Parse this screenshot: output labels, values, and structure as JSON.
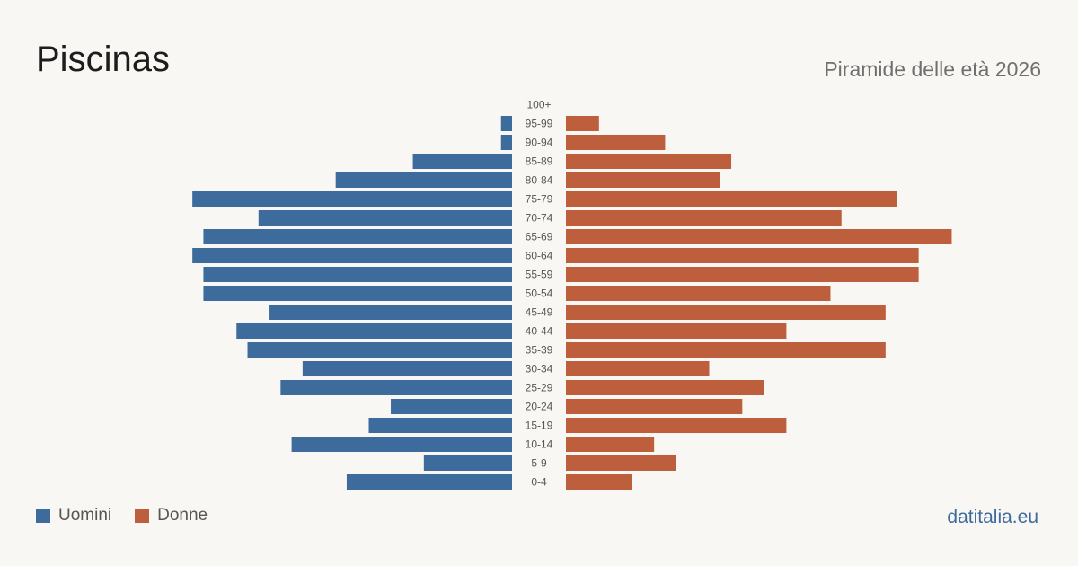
{
  "title": "Piscinas",
  "subtitle": "Piramide delle età 2026",
  "source": "datitalia.eu",
  "colors": {
    "men": "#3d6b9c",
    "women": "#bd5f3d",
    "source": "#3d6b9c"
  },
  "legend": {
    "men_label": "Uomini",
    "women_label": "Donne"
  },
  "chart_data": {
    "type": "bar",
    "orientation": "horizontal-pyramid",
    "categories": [
      "100+",
      "95-99",
      "90-94",
      "85-89",
      "80-84",
      "75-79",
      "70-74",
      "65-69",
      "60-64",
      "55-59",
      "50-54",
      "45-49",
      "40-44",
      "35-39",
      "30-34",
      "25-29",
      "20-24",
      "15-19",
      "10-14",
      "5-9",
      "0-4"
    ],
    "series": [
      {
        "name": "Uomini",
        "values": [
          0,
          1,
          1,
          9,
          16,
          29,
          23,
          28,
          29,
          28,
          28,
          22,
          25,
          24,
          19,
          21,
          11,
          13,
          20,
          8,
          15
        ]
      },
      {
        "name": "Donne",
        "values": [
          0,
          3,
          9,
          15,
          14,
          30,
          25,
          35,
          32,
          32,
          24,
          29,
          20,
          29,
          13,
          18,
          16,
          20,
          8,
          10,
          6
        ]
      }
    ],
    "grid": false,
    "legend_position": "bottom-left"
  }
}
